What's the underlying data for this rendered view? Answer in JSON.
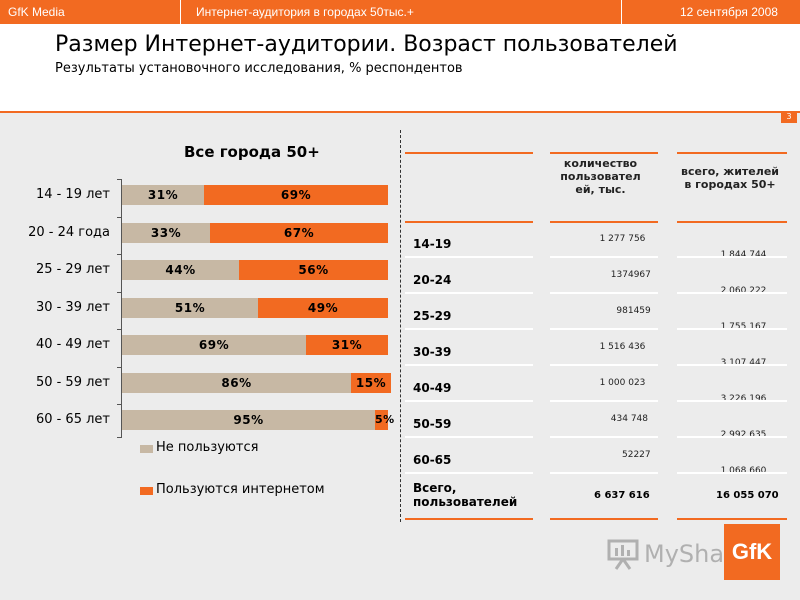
{
  "header": {
    "brand": "GfK Media",
    "section": "Интернет-аудитория в городах 50тыс.+",
    "date": "12 сентября 2008",
    "accent": "#f26a21"
  },
  "slide": {
    "title": "Размер Интернет-аудитории. Возраст пользователей",
    "subtitle": "Результаты установочного исследования, % респондентов",
    "page": "3"
  },
  "chart_data": {
    "type": "bar",
    "orientation": "horizontal-stacked",
    "title": "Все города 50+",
    "categories": [
      "14 - 19 лет",
      "20 - 24 года",
      "25 - 29 лет",
      "30 - 39 лет",
      "40 - 49 лет",
      "50 - 59 лет",
      "60 - 65 лет"
    ],
    "series": [
      {
        "name": "Не пользуются",
        "values": [
          31,
          33,
          44,
          51,
          69,
          86,
          95
        ],
        "labels": [
          "31%",
          "33%",
          "44%",
          "51%",
          "69%",
          "86%",
          "95%"
        ],
        "color": "#c7b8a4"
      },
      {
        "name": "Пользуются интернетом",
        "values": [
          69,
          67,
          56,
          49,
          31,
          15,
          5
        ],
        "labels": [
          "69%",
          "67%",
          "56%",
          "49%",
          "31%",
          "15%",
          "5%"
        ],
        "color": "#f26a21"
      }
    ],
    "xlim": [
      0,
      100
    ],
    "legend": "bottom"
  },
  "table": {
    "col1_header": "количество пользовател ей, тыс.",
    "col2_header": "всего, жителей в городах 50+",
    "rows": [
      {
        "label": "14-19",
        "users": "1 277 756",
        "total": "1 844 744"
      },
      {
        "label": "20-24",
        "users": "1374967",
        "total": "2 060 222"
      },
      {
        "label": "25-29",
        "users": "981459",
        "total": "1 755 167"
      },
      {
        "label": "30-39",
        "users": "1 516 436",
        "total": "3 107 447"
      },
      {
        "label": "40-49",
        "users": "1 000 023",
        "total": "3 226 196"
      },
      {
        "label": "50-59",
        "users": "434 748",
        "total": "2 992 635"
      },
      {
        "label": "60-65",
        "users": "52227",
        "total": "1 068 660"
      }
    ],
    "total_label": "Всего, пользователей",
    "total_users": "6 637 616",
    "total_all": "16 055 070"
  },
  "watermark": {
    "text": "MyShared",
    "icon": "presentation-board-icon"
  },
  "logo": {
    "text": "GfK"
  }
}
